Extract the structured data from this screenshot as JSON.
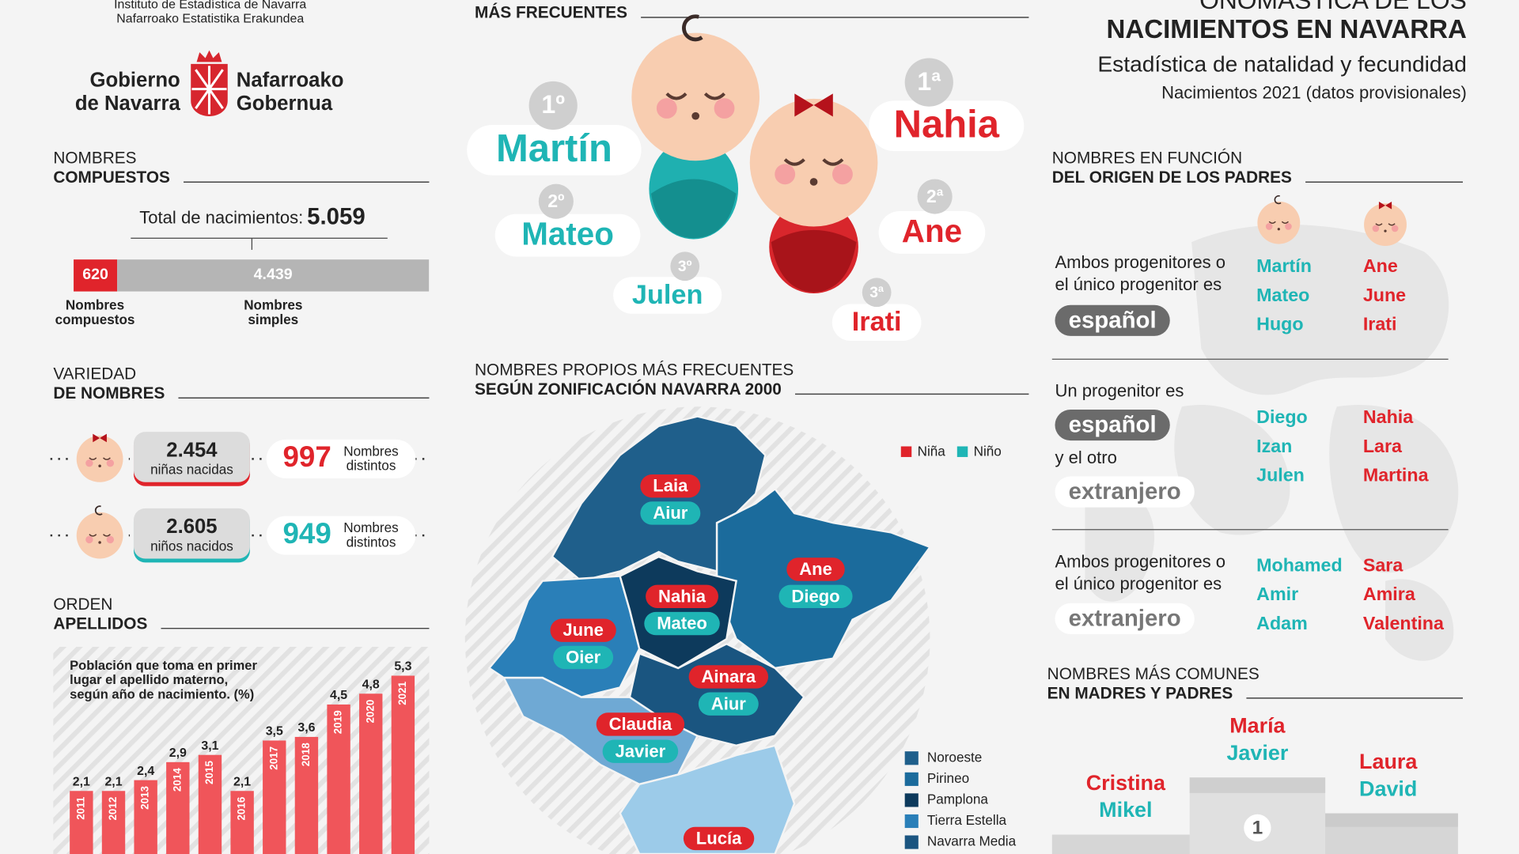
{
  "header": {
    "institute": [
      "Instituto de Estadística de Navarra",
      "Nafarroako Estatistika Erakundea"
    ],
    "gov_es": [
      "Gobierno",
      "de Navarra"
    ],
    "gov_eu": [
      "Nafarroako",
      "Gobernua"
    ],
    "title": [
      "ONOMÁSTICA DE LOS",
      "NACIMIENTOS EN NAVARRA"
    ],
    "subtitle": "Estadística de natalidad y fecundidad",
    "note": "Nacimientos 2021 (datos provisionales)"
  },
  "compuestos": {
    "heading": [
      "NOMBRES",
      "COMPUESTOS"
    ],
    "total_label": "Total de nacimientos:",
    "total": "5.059",
    "values": [
      620,
      4439
    ],
    "value_labels": [
      "620",
      "4.439"
    ],
    "labels": [
      [
        "Nombres",
        "compuestos"
      ],
      [
        "Nombres",
        "simples"
      ]
    ]
  },
  "variedad": {
    "heading": [
      "VARIEDAD",
      "DE NOMBRES"
    ],
    "rows": [
      {
        "count": "2.454",
        "label": "niñas nacidas",
        "distinct": "997",
        "distinct_label": [
          "Nombres",
          "distintos"
        ]
      },
      {
        "count": "2.605",
        "label": "niños nacidos",
        "distinct": "949",
        "distinct_label": [
          "Nombres",
          "distintos"
        ]
      }
    ]
  },
  "apellidos": {
    "heading": [
      "ORDEN",
      "APELLIDOS"
    ],
    "caption": [
      "Población que toma en primer",
      "lugar el apellido materno,",
      "según año de nacimiento. (%)"
    ],
    "chart": {
      "type": "bar",
      "categories": [
        "2011",
        "2012",
        "2013",
        "2014",
        "2015",
        "2016",
        "2017",
        "2018",
        "2019",
        "2020",
        "2021"
      ],
      "values": [
        2.1,
        2.1,
        2.4,
        2.9,
        3.1,
        2.1,
        3.5,
        3.6,
        4.5,
        4.8,
        5.3
      ],
      "value_labels": [
        "2,1",
        "2,1",
        "2,4",
        "2,9",
        "3,1",
        "2,1",
        "3,5",
        "3,6",
        "4,5",
        "4,8",
        "5,3"
      ]
    }
  },
  "frecuentes": {
    "heading": "MÁS FRECUENTES",
    "boys": [
      {
        "rank": "1º",
        "name": "Martín"
      },
      {
        "rank": "2º",
        "name": "Mateo"
      },
      {
        "rank": "3º",
        "name": "Julen"
      }
    ],
    "girls": [
      {
        "rank": "1ª",
        "name": "Nahia"
      },
      {
        "rank": "2ª",
        "name": "Ane"
      },
      {
        "rank": "3ª",
        "name": "Irati"
      }
    ]
  },
  "zonas": {
    "heading": [
      "NOMBRES PROPIOS MÁS FRECUENTES",
      "SEGÚN ZONIFICACIÓN NAVARRA 2000"
    ],
    "legend": [
      "Niña",
      "Niño"
    ],
    "map_labels": [
      {
        "girl": "Laia",
        "boy": "Aiur"
      },
      {
        "girl": "Ane",
        "boy": "Diego"
      },
      {
        "girl": "Nahia",
        "boy": "Mateo"
      },
      {
        "girl": "June",
        "boy": "Oier"
      },
      {
        "girl": "Ainara",
        "boy": "Aiur"
      },
      {
        "girl": "Claudia",
        "boy": "Javier"
      },
      {
        "girl": "Lucía"
      }
    ],
    "zone_names": [
      "Noroeste",
      "Pirineo",
      "Pamplona",
      "Tierra Estella",
      "Navarra Media"
    ]
  },
  "origen": {
    "heading": [
      "NOMBRES EN FUNCIÓN",
      "DEL ORIGEN DE LOS PADRES"
    ],
    "groups": [
      {
        "text": [
          "Ambos progenitores o",
          "el único progenitor es"
        ],
        "tags": [
          "español"
        ],
        "boys": [
          "Martín",
          "Mateo",
          "Hugo"
        ],
        "girls": [
          "Ane",
          "June",
          "Irati"
        ]
      },
      {
        "text": [
          "Un progenitor es",
          "y el otro"
        ],
        "tags": [
          "español",
          "extranjero"
        ],
        "boys": [
          "Diego",
          "Izan",
          "Julen"
        ],
        "girls": [
          "Nahia",
          "Lara",
          "Martina"
        ]
      },
      {
        "text": [
          "Ambos progenitores o",
          "el único progenitor es"
        ],
        "tags": [
          "extranjero"
        ],
        "boys": [
          "Mohamed",
          "Amir",
          "Adam"
        ],
        "girls": [
          "Sara",
          "Amira",
          "Valentina"
        ]
      }
    ]
  },
  "comunes": {
    "heading": [
      "NOMBRES MÁS COMUNES",
      "EN MADRES Y PADRES"
    ],
    "podium": [
      {
        "rank": "1",
        "mother": "María",
        "father": "Javier"
      },
      {
        "mother": "Cristina",
        "father": "Mikel"
      },
      {
        "mother": "Laura",
        "father": "David"
      }
    ]
  }
}
